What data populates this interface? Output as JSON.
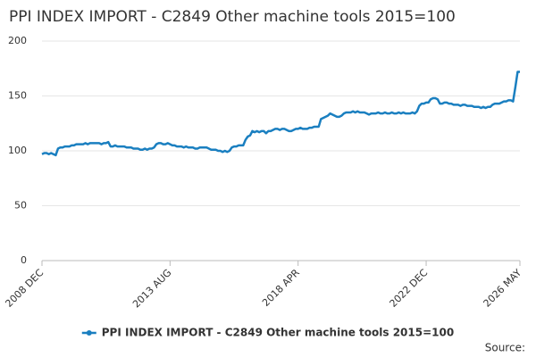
{
  "chart_data": {
    "type": "line",
    "title": "PPI INDEX IMPORT - C2849 Other machine tools 2015=100",
    "source": "Source:",
    "legend": "bottom",
    "grid": true,
    "categories": [
      "2008 DEC",
      null,
      null,
      null,
      null,
      null,
      null,
      null,
      null,
      null,
      null,
      null,
      null,
      null,
      null,
      null,
      null,
      null,
      null,
      null,
      null,
      null,
      null,
      null,
      null,
      null,
      null,
      null,
      null,
      null,
      null,
      null,
      null,
      null,
      null,
      null,
      null,
      null,
      null,
      null,
      null,
      null,
      null,
      null,
      null,
      null,
      null,
      null,
      null,
      null,
      null,
      null,
      null,
      null,
      null,
      null,
      "2013 AUG",
      null,
      null,
      null,
      null,
      null,
      null,
      null,
      null,
      null,
      null,
      null,
      null,
      null,
      null,
      null,
      null,
      null,
      null,
      null,
      null,
      null,
      null,
      null,
      null,
      null,
      null,
      null,
      null,
      null,
      null,
      null,
      null,
      null,
      null,
      null,
      null,
      null,
      null,
      null,
      null,
      null,
      null,
      null,
      null,
      null,
      null,
      null,
      null,
      null,
      null,
      null,
      null,
      null,
      null,
      null,
      "2018 APR",
      null,
      null,
      null,
      null,
      null,
      null,
      null,
      null,
      null,
      null,
      null,
      null,
      null,
      null,
      null,
      null,
      null,
      null,
      null,
      null,
      null,
      null,
      null,
      null,
      null,
      null,
      null,
      null,
      null,
      null,
      null,
      null,
      null,
      null,
      null,
      null,
      null,
      null,
      null,
      null,
      null,
      null,
      null,
      null,
      null,
      null,
      null,
      null,
      null,
      null,
      null,
      null,
      null,
      null,
      null,
      "2022 DEC",
      null,
      null,
      null,
      null,
      null,
      null,
      null,
      null,
      null,
      null,
      null,
      null,
      null,
      null,
      null,
      null,
      null,
      null,
      null,
      null,
      null,
      null,
      null,
      null,
      null,
      null,
      null,
      null,
      null,
      null,
      null,
      null,
      null,
      null,
      null,
      null,
      null,
      null,
      null,
      null,
      "2026 MAY"
    ],
    "series": [
      {
        "name": "PPI INDEX IMPORT - C2849 Other machine tools 2015=100",
        "color": "#1a7fc0",
        "values": [
          97,
          98,
          98,
          97,
          98,
          97,
          96,
          102,
          103,
          103,
          104,
          104,
          104,
          105,
          105,
          106,
          106,
          106,
          106,
          107,
          106,
          107,
          107,
          107,
          107,
          107,
          106,
          107,
          107,
          108,
          104,
          104,
          105,
          104,
          104,
          104,
          104,
          103,
          103,
          103,
          102,
          102,
          102,
          101,
          101,
          102,
          101,
          102,
          102,
          103,
          106,
          107,
          107,
          106,
          106,
          107,
          106,
          105,
          105,
          104,
          104,
          104,
          103,
          104,
          103,
          103,
          103,
          102,
          102,
          103,
          103,
          103,
          103,
          102,
          101,
          101,
          101,
          100,
          100,
          99,
          100,
          99,
          100,
          103,
          104,
          104,
          105,
          105,
          105,
          110,
          113,
          114,
          118,
          117,
          118,
          117,
          118,
          118,
          116,
          118,
          118,
          119,
          120,
          120,
          119,
          120,
          120,
          119,
          118,
          118,
          119,
          120,
          120,
          121,
          120,
          120,
          120,
          121,
          121,
          122,
          122,
          122,
          129,
          130,
          131,
          132,
          134,
          133,
          132,
          131,
          131,
          132,
          134,
          135,
          135,
          135,
          136,
          135,
          136,
          135,
          135,
          135,
          134,
          133,
          134,
          134,
          134,
          135,
          134,
          134,
          135,
          134,
          134,
          135,
          134,
          134,
          135,
          134,
          135,
          134,
          134,
          134,
          135,
          134,
          136,
          141,
          143,
          143,
          144,
          144,
          147,
          148,
          148,
          147,
          143,
          143,
          144,
          144,
          143,
          143,
          142,
          142,
          142,
          141,
          142,
          142,
          141,
          141,
          141,
          140,
          140,
          140,
          139,
          140,
          139,
          140,
          140,
          142,
          143,
          143,
          143,
          144,
          145,
          145,
          146,
          146,
          145,
          158,
          172,
          172
        ]
      }
    ],
    "ylim": [
      0,
      200
    ],
    "yticks": [
      0,
      50,
      100,
      150,
      200
    ]
  }
}
